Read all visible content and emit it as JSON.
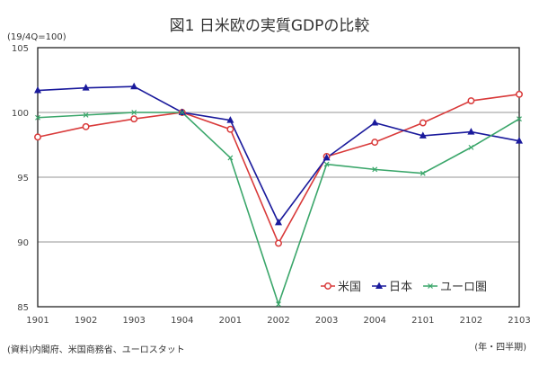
{
  "chart_data": {
    "type": "line",
    "title": "図1 日米欧の実質GDPの比較",
    "ylabel": "(19/4Q=100)",
    "xlabel": "(年・四半期)",
    "source": "(資料)内閣府、米国商務省、ユーロスタット",
    "ylim": [
      85,
      105
    ],
    "yticks": [
      85,
      90,
      95,
      100,
      105
    ],
    "grid": true,
    "legend": "bottom-right",
    "categories": [
      "1901",
      "1902",
      "1903",
      "1904",
      "2001",
      "2002",
      "2003",
      "2004",
      "2101",
      "2102",
      "2103"
    ],
    "series": [
      {
        "name": "米国",
        "color": "#d93a3a",
        "marker": "circle",
        "values": [
          98.1,
          98.9,
          99.5,
          100.0,
          98.7,
          89.9,
          96.6,
          97.7,
          99.2,
          100.9,
          101.4
        ]
      },
      {
        "name": "日本",
        "color": "#1a1a9c",
        "marker": "triangle",
        "values": [
          101.7,
          101.9,
          102.0,
          100.0,
          99.4,
          91.5,
          96.5,
          99.2,
          98.2,
          98.5,
          97.8
        ]
      },
      {
        "name": "ユーロ圏",
        "color": "#3aa66a",
        "marker": "x",
        "values": [
          99.6,
          99.8,
          100.0,
          100.0,
          96.5,
          85.2,
          96.0,
          95.6,
          95.3,
          97.3,
          99.5
        ]
      }
    ]
  }
}
